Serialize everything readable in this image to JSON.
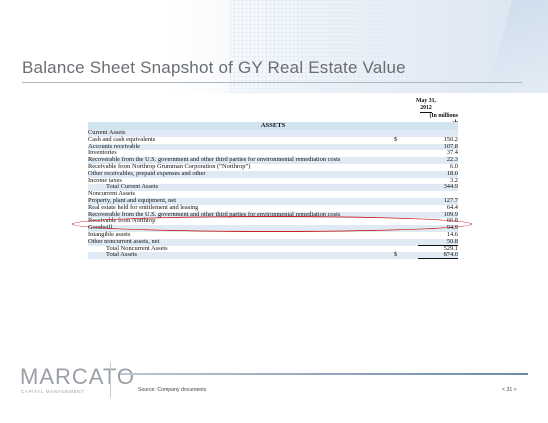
{
  "slide": {
    "title": "Balance Sheet Snapshot of GY Real Estate Value",
    "source": "Source: Company documents",
    "page": "< 31 >"
  },
  "logo": {
    "name": "MARCATO",
    "subtitle": "CAPITAL MANAGEMENT"
  },
  "table": {
    "col_date1": "May 31,",
    "col_date2": "2012",
    "col_units": "(In millions",
    "col_units2": "sh",
    "section": "ASSETS",
    "rows": [
      {
        "label": "Current Assets",
        "value": ""
      },
      {
        "label": "Cash and cash equivalents",
        "dollar": "$",
        "value": "150.2"
      },
      {
        "label": "Accounts receivable",
        "value": "107.8"
      },
      {
        "label": "Inventories",
        "value": "37.4"
      },
      {
        "label": "Recoverable from the U.S. government and other third parties for environmental remediation costs",
        "value": "22.3"
      },
      {
        "label": "Receivable from Northrop Grumman Corporation (“Northrop”)",
        "value": "6.0"
      },
      {
        "label": "Other receivables, prepaid expenses and other",
        "value": "18.0"
      },
      {
        "label": "Income taxes",
        "value": "3.2"
      },
      {
        "label": "Total Current Assets",
        "value": "344.9"
      },
      {
        "label": "Noncurrent Assets",
        "value": ""
      },
      {
        "label": "Property, plant and equipment, net",
        "value": "127.7"
      },
      {
        "label": "Real estate held for entitlement and leasing",
        "value": "64.4"
      },
      {
        "label": "Recoverable from the U.S. government and other third parties for environmental remediation costs",
        "value": "109.9"
      },
      {
        "label": "Receivable from Northrop",
        "value": "66.8"
      },
      {
        "label": "Goodwill",
        "value": "94.9"
      },
      {
        "label": "Intangible assets",
        "value": "14.6"
      },
      {
        "label": "Other noncurrent assets, net",
        "value": "50.8"
      },
      {
        "label": "Total Noncurrent Assets",
        "value": "529.1"
      },
      {
        "label": "Total Assets",
        "dollar": "$",
        "value": "874.0"
      }
    ]
  },
  "colors": {
    "highlight": "#cc1f1f",
    "row_shade": "#dfeaf4",
    "header_shade": "#d3e4f1"
  }
}
